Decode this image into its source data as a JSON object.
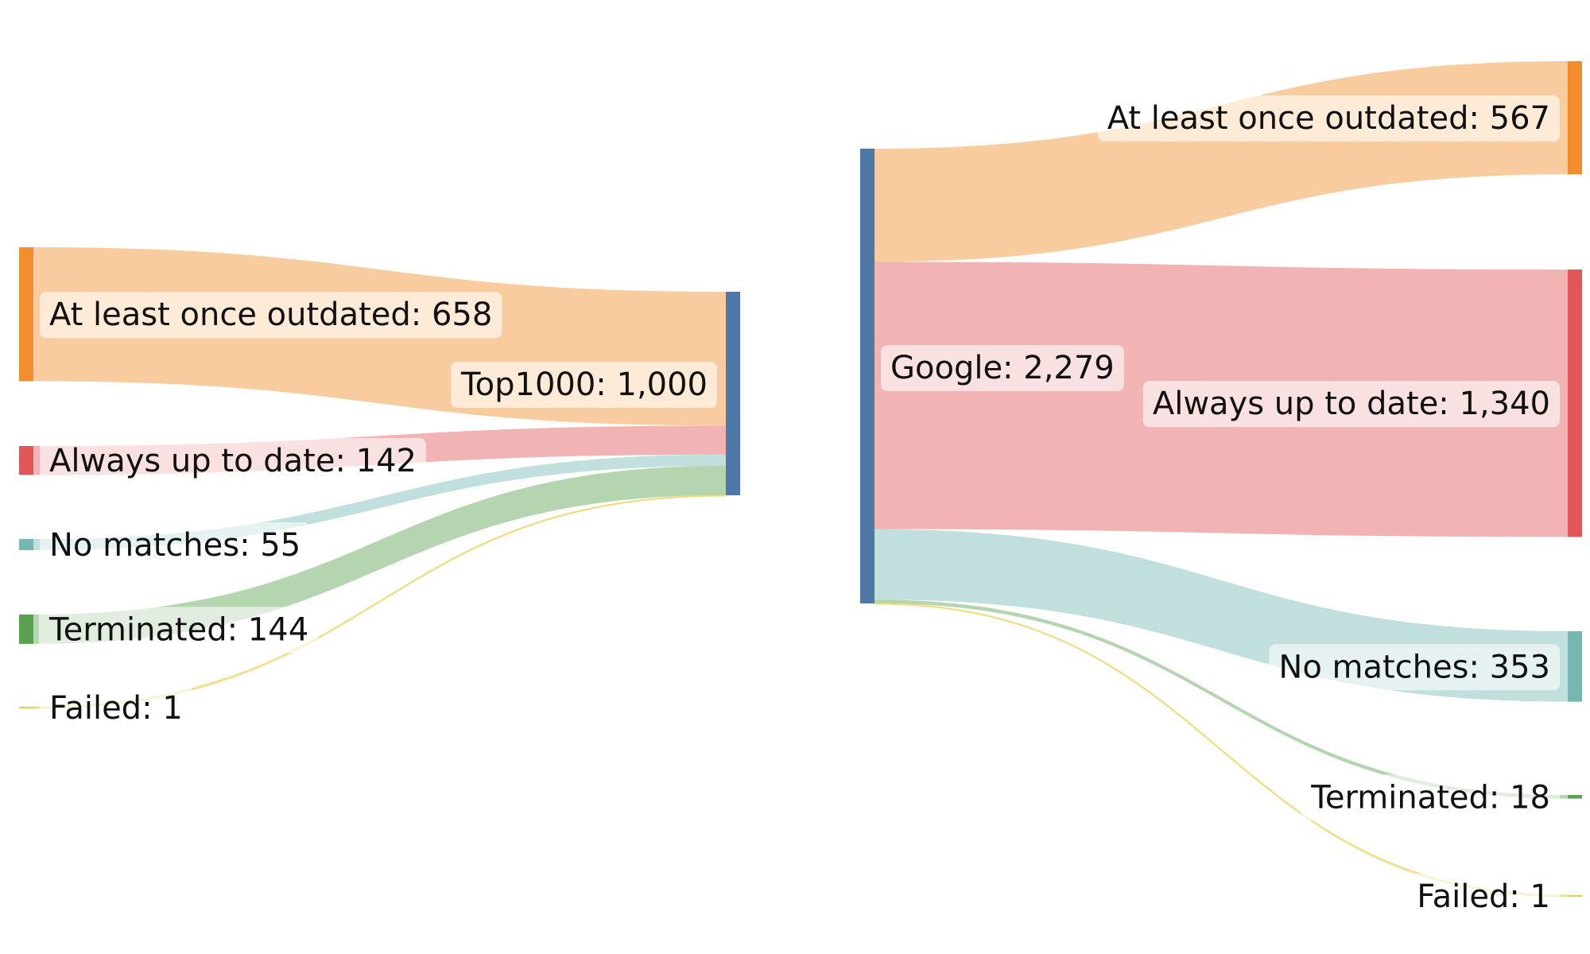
{
  "colors": {
    "center": "#4e79a7",
    "outdated": "#f28e2b",
    "uptodate": "#e15759",
    "nomatch": "#76b7b2",
    "terminated": "#59a14f",
    "failed": "#edc948"
  },
  "diagrams": [
    {
      "source": {
        "name": "Top1000",
        "value": "1,000",
        "label": "Top1000: 1,000"
      },
      "targets": [
        {
          "key": "outdated",
          "value": 658,
          "label": "At least once outdated: 658"
        },
        {
          "key": "uptodate",
          "value": 142,
          "label": "Always up to date: 142"
        },
        {
          "key": "nomatch",
          "value": 55,
          "label": "No matches: 55"
        },
        {
          "key": "terminated",
          "value": 144,
          "label": "Terminated: 144"
        },
        {
          "key": "failed",
          "value": 1,
          "label": "Failed: 1"
        }
      ]
    },
    {
      "source": {
        "name": "Google",
        "value": "2,279",
        "label": "Google: 2,279"
      },
      "targets": [
        {
          "key": "outdated",
          "value": 567,
          "label": "At least once outdated: 567"
        },
        {
          "key": "uptodate",
          "value": 1340,
          "label": "Always up to date: 1,340"
        },
        {
          "key": "nomatch",
          "value": 353,
          "label": "No matches: 353"
        },
        {
          "key": "terminated",
          "value": 18,
          "label": "Terminated: 18"
        },
        {
          "key": "failed",
          "value": 1,
          "label": "Failed: 1"
        }
      ]
    }
  ]
}
